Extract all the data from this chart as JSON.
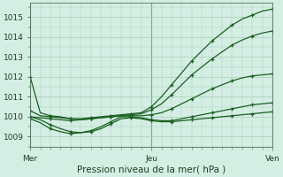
{
  "title": "",
  "xlabel": "Pression niveau de la mer( hPa )",
  "background_color": "#d4eee4",
  "grid_color": "#a8cdb8",
  "line_color": "#1a6020",
  "marker_color": "#1a6020",
  "yticks": [
    1009,
    1010,
    1011,
    1012,
    1013,
    1014,
    1015
  ],
  "ylim": [
    1008.5,
    1015.7
  ],
  "xlim": [
    0,
    48
  ],
  "xtick_positions": [
    0,
    24,
    48
  ],
  "xtick_labels": [
    "Mer",
    "Jeu",
    "Ven"
  ],
  "series": [
    [
      1012.0,
      1010.2,
      1010.05,
      1010.0,
      1009.9,
      1009.9,
      1009.95,
      1010.0,
      1010.05,
      1010.1,
      1010.15,
      1010.2,
      1010.5,
      1011.0,
      1011.6,
      1012.2,
      1012.8,
      1013.3,
      1013.8,
      1014.2,
      1014.6,
      1014.9,
      1015.1,
      1015.3,
      1015.4
    ],
    [
      1010.3,
      1010.05,
      1010.0,
      1009.95,
      1009.9,
      1009.85,
      1009.9,
      1009.95,
      1010.0,
      1010.05,
      1010.1,
      1010.15,
      1010.35,
      1010.65,
      1011.1,
      1011.6,
      1012.1,
      1012.5,
      1012.9,
      1013.25,
      1013.6,
      1013.85,
      1014.05,
      1014.2,
      1014.3
    ],
    [
      1010.0,
      1009.95,
      1009.9,
      1009.85,
      1009.8,
      1009.85,
      1009.9,
      1009.95,
      1010.0,
      1010.05,
      1010.05,
      1010.05,
      1010.1,
      1010.2,
      1010.4,
      1010.65,
      1010.9,
      1011.15,
      1011.4,
      1011.6,
      1011.8,
      1011.95,
      1012.05,
      1012.1,
      1012.15
    ],
    [
      1009.9,
      1009.7,
      1009.4,
      1009.25,
      1009.15,
      1009.2,
      1009.3,
      1009.5,
      1009.75,
      1010.0,
      1010.0,
      1009.95,
      1009.85,
      1009.8,
      1009.8,
      1009.9,
      1010.0,
      1010.1,
      1010.2,
      1010.3,
      1010.4,
      1010.5,
      1010.6,
      1010.65,
      1010.7
    ],
    [
      1010.0,
      1009.85,
      1009.6,
      1009.4,
      1009.25,
      1009.2,
      1009.25,
      1009.4,
      1009.65,
      1009.9,
      1009.95,
      1009.9,
      1009.8,
      1009.75,
      1009.75,
      1009.8,
      1009.85,
      1009.9,
      1009.95,
      1010.0,
      1010.05,
      1010.1,
      1010.15,
      1010.2,
      1010.25
    ]
  ],
  "marker_every": 2,
  "linewidth": 0.9
}
